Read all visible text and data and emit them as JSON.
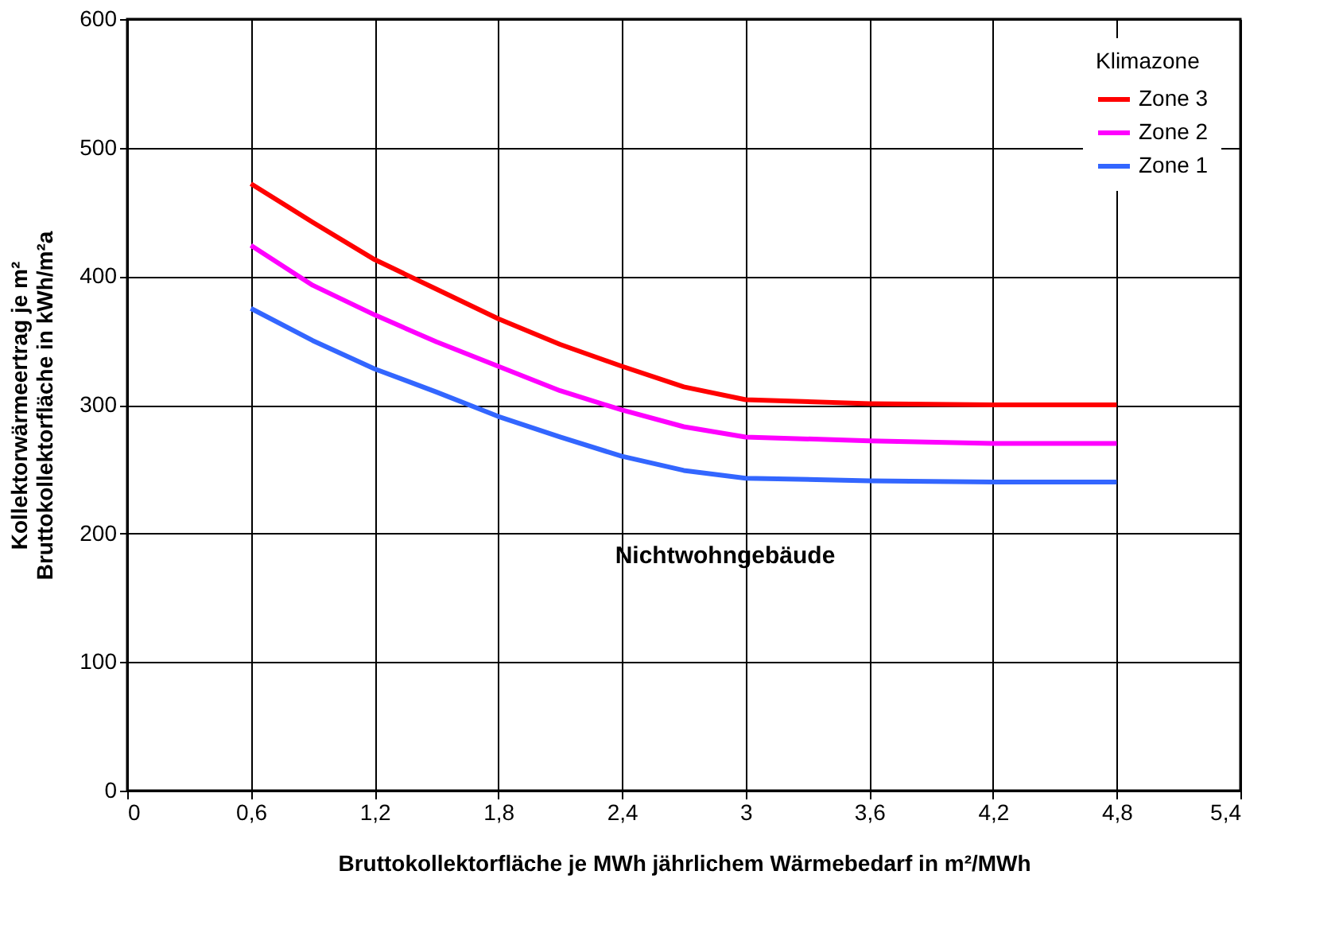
{
  "chart_data": {
    "type": "line",
    "xlabel": "Bruttokollektorfläche je MWh jährlichem Wärmebedarf in m²/MWh",
    "ylabel": "Kollektorwärmeertrag je m²\nBruttokollektorfläche in kWh/m²a",
    "legend_title": "Klimazone",
    "legend": "top right",
    "grid": true,
    "marker": "none",
    "line_style": "solid",
    "x": [
      0.6,
      0.9,
      1.2,
      1.5,
      1.8,
      2.1,
      2.4,
      2.7,
      3.0,
      3.6,
      4.2,
      4.8
    ],
    "xlim": [
      0,
      5.4
    ],
    "xticks": [
      0,
      {
        "value": 0.6,
        "label": "0,6"
      },
      {
        "value": 1.2,
        "label": "1,2"
      },
      {
        "value": 1.8,
        "label": "1,8"
      },
      {
        "value": 2.4,
        "label": "2,4"
      },
      3,
      {
        "value": 3.6,
        "label": "3,6"
      },
      {
        "value": 4.2,
        "label": "4,2"
      },
      {
        "value": 4.8,
        "label": "4,8"
      },
      {
        "value": 5.4,
        "label": "5,4"
      }
    ],
    "ylim": [
      0,
      600
    ],
    "yticks": [
      0,
      100,
      200,
      300,
      400,
      500,
      600
    ],
    "series": [
      {
        "name": "Zone 3",
        "color": "#ff0000",
        "values": [
          472,
          442,
          413,
          390,
          367,
          347,
          330,
          314,
          304,
          301,
          300,
          300
        ]
      },
      {
        "name": "Zone 2",
        "color": "#ff00ff",
        "values": [
          424,
          393,
          370,
          349,
          330,
          311,
          296,
          283,
          275,
          272,
          270,
          270
        ]
      },
      {
        "name": "Zone 1",
        "color": "#3366ff",
        "values": [
          375,
          350,
          328,
          310,
          291,
          275,
          260,
          249,
          243,
          241,
          240,
          240
        ]
      }
    ],
    "annotations": [
      "Nichtwohngebäude"
    ]
  }
}
